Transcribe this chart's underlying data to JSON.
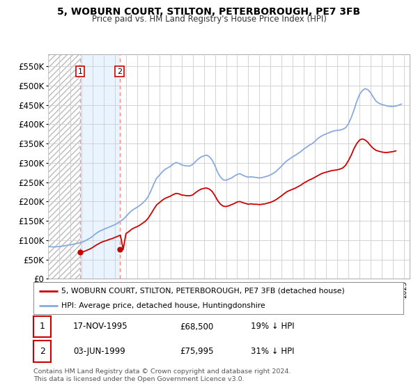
{
  "title": "5, WOBURN COURT, STILTON, PETERBOROUGH, PE7 3FB",
  "subtitle": "Price paid vs. HM Land Registry's House Price Index (HPI)",
  "ylabel_ticks": [
    "£0",
    "£50K",
    "£100K",
    "£150K",
    "£200K",
    "£250K",
    "£300K",
    "£350K",
    "£400K",
    "£450K",
    "£500K",
    "£550K"
  ],
  "ytick_values": [
    0,
    50000,
    100000,
    150000,
    200000,
    250000,
    300000,
    350000,
    400000,
    450000,
    500000,
    550000
  ],
  "ylim": [
    0,
    580000
  ],
  "xlim_start": 1993.0,
  "xlim_end": 2025.5,
  "sale1_x": 1995.88,
  "sale1_y": 68500,
  "sale2_x": 1999.42,
  "sale2_y": 75995,
  "sale_color": "#cc0000",
  "hpi_color": "#88aadd",
  "background_color": "#ffffff",
  "grid_color": "#cccccc",
  "legend_label_red": "5, WOBURN COURT, STILTON, PETERBOROUGH, PE7 3FB (detached house)",
  "legend_label_blue": "HPI: Average price, detached house, Huntingdonshire",
  "annotation1_date": "17-NOV-1995",
  "annotation1_price": "£68,500",
  "annotation1_hpi": "19% ↓ HPI",
  "annotation2_date": "03-JUN-1999",
  "annotation2_price": "£75,995",
  "annotation2_hpi": "31% ↓ HPI",
  "footer": "Contains HM Land Registry data © Crown copyright and database right 2024.\nThis data is licensed under the Open Government Licence v3.0.",
  "hpi_years": [
    1993.0,
    1993.25,
    1993.5,
    1993.75,
    1994.0,
    1994.25,
    1994.5,
    1994.75,
    1995.0,
    1995.25,
    1995.5,
    1995.75,
    1996.0,
    1996.25,
    1996.5,
    1996.75,
    1997.0,
    1997.25,
    1997.5,
    1997.75,
    1998.0,
    1998.25,
    1998.5,
    1998.75,
    1999.0,
    1999.25,
    1999.5,
    1999.75,
    2000.0,
    2000.25,
    2000.5,
    2000.75,
    2001.0,
    2001.25,
    2001.5,
    2001.75,
    2002.0,
    2002.25,
    2002.5,
    2002.75,
    2003.0,
    2003.25,
    2003.5,
    2003.75,
    2004.0,
    2004.25,
    2004.5,
    2004.75,
    2005.0,
    2005.25,
    2005.5,
    2005.75,
    2006.0,
    2006.25,
    2006.5,
    2006.75,
    2007.0,
    2007.25,
    2007.5,
    2007.75,
    2008.0,
    2008.25,
    2008.5,
    2008.75,
    2009.0,
    2009.25,
    2009.5,
    2009.75,
    2010.0,
    2010.25,
    2010.5,
    2010.75,
    2011.0,
    2011.25,
    2011.5,
    2011.75,
    2012.0,
    2012.25,
    2012.5,
    2012.75,
    2013.0,
    2013.25,
    2013.5,
    2013.75,
    2014.0,
    2014.25,
    2014.5,
    2014.75,
    2015.0,
    2015.25,
    2015.5,
    2015.75,
    2016.0,
    2016.25,
    2016.5,
    2016.75,
    2017.0,
    2017.25,
    2017.5,
    2017.75,
    2018.0,
    2018.25,
    2018.5,
    2018.75,
    2019.0,
    2019.25,
    2019.5,
    2019.75,
    2020.0,
    2020.25,
    2020.5,
    2020.75,
    2021.0,
    2021.25,
    2021.5,
    2021.75,
    2022.0,
    2022.25,
    2022.5,
    2022.75,
    2023.0,
    2023.25,
    2023.5,
    2023.75,
    2024.0,
    2024.25,
    2024.5,
    2024.75
  ],
  "hpi_values": [
    84000,
    83000,
    82500,
    83000,
    83500,
    84500,
    85500,
    87000,
    88000,
    89500,
    91000,
    92500,
    94000,
    97000,
    101000,
    105000,
    110000,
    116000,
    121000,
    125000,
    128000,
    131000,
    134000,
    137000,
    140000,
    144000,
    149000,
    154000,
    161000,
    169000,
    176000,
    181000,
    185000,
    190000,
    196000,
    203000,
    213000,
    228000,
    245000,
    260000,
    268000,
    276000,
    283000,
    287000,
    291000,
    297000,
    301000,
    299000,
    295000,
    293000,
    292000,
    292000,
    296000,
    303000,
    310000,
    315000,
    318000,
    320000,
    316000,
    307000,
    293000,
    275000,
    263000,
    256000,
    255000,
    258000,
    261000,
    266000,
    270000,
    272000,
    268000,
    265000,
    263000,
    264000,
    263000,
    262000,
    261000,
    262000,
    264000,
    266000,
    269000,
    273000,
    278000,
    285000,
    292000,
    300000,
    306000,
    311000,
    316000,
    320000,
    325000,
    330000,
    336000,
    341000,
    346000,
    350000,
    356000,
    363000,
    368000,
    372000,
    375000,
    378000,
    381000,
    383000,
    384000,
    385000,
    387000,
    391000,
    401000,
    417000,
    437000,
    459000,
    477000,
    487000,
    492000,
    489000,
    481000,
    469000,
    459000,
    454000,
    451000,
    449000,
    447000,
    446000,
    446000,
    447000,
    449000,
    452000
  ],
  "red_values": [
    null,
    null,
    null,
    null,
    null,
    null,
    null,
    null,
    null,
    null,
    null,
    null,
    68500,
    71000,
    74000,
    77000,
    81000,
    86000,
    90000,
    94000,
    97000,
    99000,
    102000,
    104000,
    107000,
    110000,
    113000,
    75995,
    117000,
    122000,
    128000,
    132000,
    135000,
    139000,
    144000,
    149000,
    157000,
    168000,
    180000,
    191000,
    197000,
    203000,
    208000,
    211000,
    214000,
    218000,
    221000,
    220000,
    217000,
    216000,
    215000,
    215000,
    217000,
    223000,
    228000,
    232000,
    234000,
    235000,
    232000,
    226000,
    215000,
    202000,
    193000,
    188000,
    187000,
    189000,
    192000,
    195000,
    199000,
    200000,
    197000,
    195000,
    193000,
    194000,
    193000,
    193000,
    192000,
    193000,
    194000,
    196000,
    198000,
    201000,
    205000,
    210000,
    215000,
    221000,
    226000,
    229000,
    232000,
    235000,
    239000,
    243000,
    248000,
    252000,
    256000,
    259000,
    263000,
    267000,
    271000,
    274000,
    276000,
    278000,
    280000,
    281000,
    282000,
    284000,
    287000,
    294000,
    306000,
    320000,
    337000,
    350000,
    359000,
    362000,
    359000,
    353000,
    344000,
    337000,
    332000,
    330000,
    328000,
    327000,
    327000,
    328000,
    329000,
    331000
  ]
}
